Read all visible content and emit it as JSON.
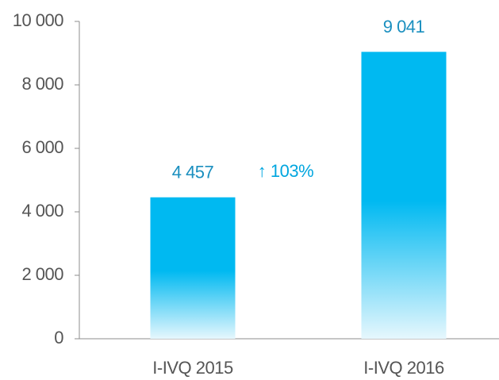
{
  "chart_data": {
    "type": "bar",
    "categories": [
      "I-IVQ 2015",
      "I-IVQ 2016"
    ],
    "values": [
      4457,
      9041
    ],
    "value_labels": [
      "4 457",
      "9 041"
    ],
    "color": "#00b9f1",
    "annotation": "↑ 103%",
    "ylim": [
      0,
      10000
    ],
    "yticks": [
      0,
      {
        "value": 2000,
        "label": "2 000"
      },
      {
        "value": 4000,
        "label": "4 000"
      },
      {
        "value": 6000,
        "label": "6 000"
      },
      {
        "value": 8000,
        "label": "8 000"
      },
      {
        "value": 10000,
        "label": "10 000"
      }
    ],
    "grid": false
  }
}
